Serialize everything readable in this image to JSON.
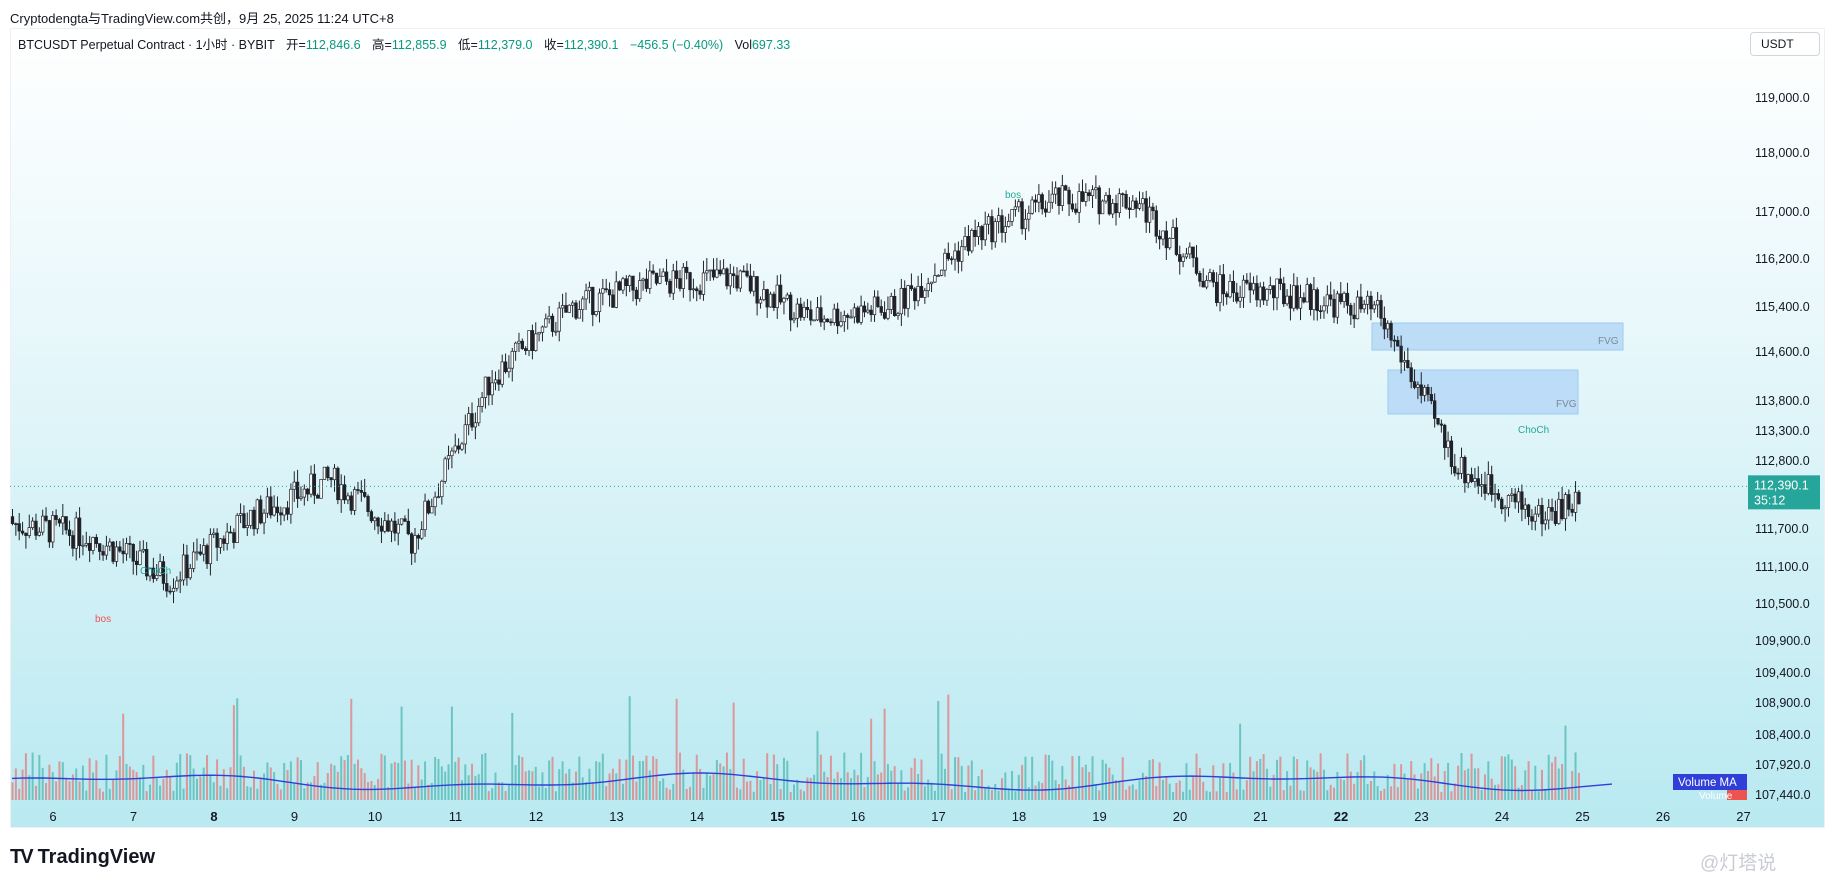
{
  "caption": "Cryptodengta与TradingView.com共创，9月 25, 2025 11:24 UTC+8",
  "legend": {
    "symbol": "BTCUSDT Perpetual Contract · 1小时 · BYBIT",
    "open_label": "开=",
    "open": "112,846.6",
    "high_label": "高=",
    "high": "112,855.9",
    "low_label": "低=",
    "low": "112,379.0",
    "close_label": "收=",
    "close": "112,390.1",
    "change": "−456.5 (−0.40%)",
    "vol_label": "Vol",
    "vol": "697.33"
  },
  "currency_button": "USDT",
  "brand": "TradingView",
  "watermark": "@灯塔说",
  "colors": {
    "up": "#26a69a",
    "down": "#ef5350",
    "volume_ma": "#2f3fd8",
    "fvg": "#b3d7f7",
    "price_tag": "#26a69a"
  },
  "chart_data": {
    "type": "candlestick",
    "x_ticks": [
      "6",
      "7",
      "8",
      "9",
      "10",
      "11",
      "12",
      "13",
      "14",
      "15",
      "16",
      "17",
      "18",
      "19",
      "20",
      "21",
      "22",
      "23",
      "24",
      "25",
      "26",
      "27"
    ],
    "x_ticks_bold": [
      "8",
      "15",
      "22"
    ],
    "y_ticks": [
      "119,000.0",
      "118,000.0",
      "117,000.0",
      "116,200.0",
      "115,400.0",
      "114,600.0",
      "113,800.0",
      "113,300.0",
      "112,800.0",
      "111,700.0",
      "111,100.0",
      "110,500.0",
      "109,900.0",
      "109,400.0",
      "108,900.0",
      "108,400.0",
      "107,920.0",
      "107,440.0"
    ],
    "y_tick_values": [
      119000,
      118000,
      117000,
      116200,
      115400,
      114600,
      113800,
      113300,
      112800,
      111700,
      111100,
      110500,
      109900,
      109400,
      108900,
      108400,
      107920,
      107440
    ],
    "last_price": "112,390.1",
    "last_price_value": 112390.1,
    "countdown": "35:12",
    "day_closes": [
      {
        "day": 6,
        "close": 111600
      },
      {
        "day": 7,
        "close": 110900
      },
      {
        "day": 8,
        "close": 111900
      },
      {
        "day": 9,
        "close": 112500
      },
      {
        "day": 10,
        "close": 111500
      },
      {
        "day": 11,
        "close": 114200
      },
      {
        "day": 12,
        "close": 115400
      },
      {
        "day": 13,
        "close": 115800
      },
      {
        "day": 14,
        "close": 115900
      },
      {
        "day": 15,
        "close": 115200
      },
      {
        "day": 16,
        "close": 115400
      },
      {
        "day": 17,
        "close": 116600
      },
      {
        "day": 18,
        "close": 117200
      },
      {
        "day": 19,
        "close": 117200
      },
      {
        "day": 20,
        "close": 115700
      },
      {
        "day": 21,
        "close": 115600
      },
      {
        "day": 22,
        "close": 115300
      },
      {
        "day": 23,
        "close": 112700
      },
      {
        "day": 24,
        "close": 111900
      },
      {
        "day": 25,
        "close": 112390
      }
    ],
    "annotations": [
      "bos",
      "ChoCh",
      "FVG",
      "ChoCh",
      "bos",
      "FVG"
    ],
    "volume_ma_label": "Volume MA",
    "volume_label": "Volume"
  }
}
